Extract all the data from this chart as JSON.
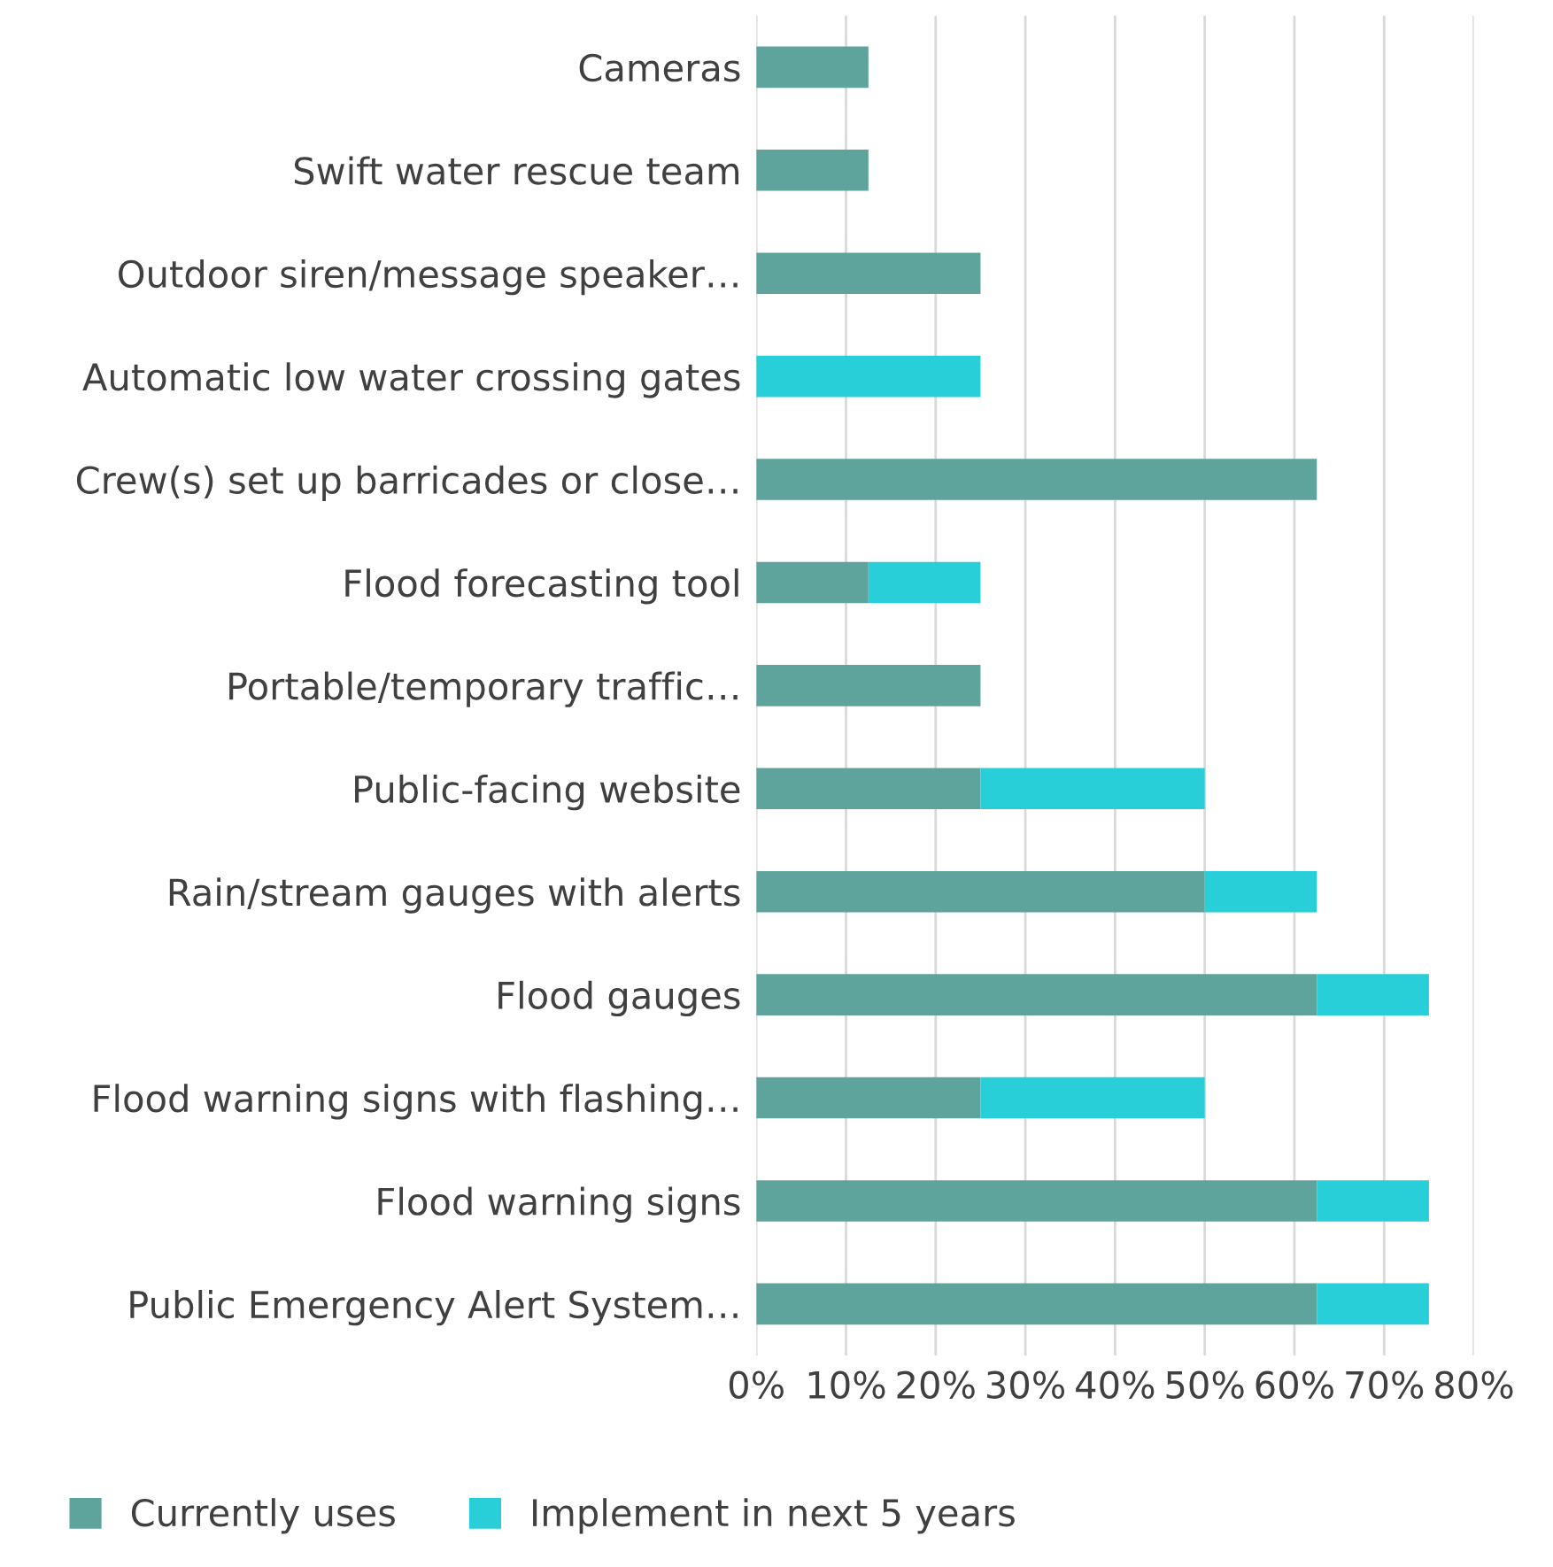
{
  "chart_data": {
    "type": "bar",
    "orientation": "horizontal",
    "stacked": true,
    "categories": [
      "Cameras",
      "Swift water rescue team",
      "Outdoor siren/message speaker…",
      "Automatic low water crossing gates",
      "Crew(s) set up barricades or close…",
      "Flood forecasting tool",
      "Portable/temporary traffic…",
      "Public-facing website",
      "Rain/stream gauges with alerts",
      "Flood gauges",
      "Flood warning signs with flashing…",
      "Flood warning signs",
      "Public Emergency Alert System…"
    ],
    "series": [
      {
        "name": "Currently uses",
        "color": "#5fa39d",
        "values": [
          12.5,
          12.5,
          25,
          0,
          62.5,
          12.5,
          25,
          25,
          50,
          62.5,
          25,
          62.5,
          62.5
        ]
      },
      {
        "name": "Implement in next 5 years",
        "color": "#29cfd8",
        "values": [
          0,
          0,
          0,
          25,
          0,
          12.5,
          0,
          25,
          12.5,
          12.5,
          25,
          12.5,
          12.5
        ]
      }
    ],
    "xlim": [
      0,
      80
    ],
    "xticks": [
      {
        "value": 0,
        "label": "0%"
      },
      {
        "value": 10,
        "label": "10%"
      },
      {
        "value": 20,
        "label": "20%"
      },
      {
        "value": 30,
        "label": "30%"
      },
      {
        "value": 40,
        "label": "40%"
      },
      {
        "value": 50,
        "label": "50%"
      },
      {
        "value": 60,
        "label": "60%"
      },
      {
        "value": 70,
        "label": "70%"
      },
      {
        "value": 80,
        "label": "80%"
      }
    ],
    "grid": "x",
    "legend": "bottom"
  }
}
